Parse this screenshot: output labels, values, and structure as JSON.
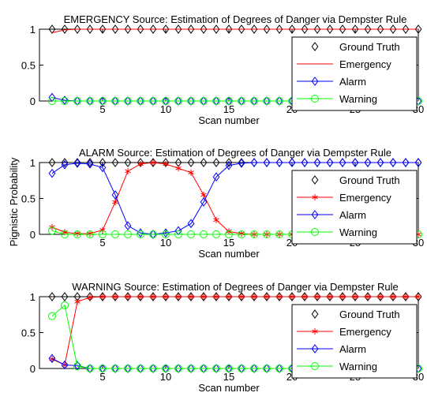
{
  "ylabel_shared": "Pignistic Probability",
  "colors": {
    "ground_truth": "#000000",
    "emergency": "#ff0000",
    "alarm": "#0000ff",
    "warning": "#00ff00",
    "axes": "#000000",
    "background": "#ffffff"
  },
  "chart_data": [
    {
      "type": "line",
      "title": "EMERGENCY Source: Estimation of Degrees of Danger via Dempster Rule",
      "xlabel": "Scan number",
      "ylabel": "Pignistic Probability",
      "xlim": [
        0,
        30
      ],
      "ylim": [
        0,
        1
      ],
      "xticks": [
        5,
        10,
        15,
        20,
        25,
        30
      ],
      "xtick_labels": [
        "5",
        "10",
        "15",
        "20",
        "25",
        "30"
      ],
      "yticks": [
        0,
        0.5,
        1
      ],
      "ytick_labels": [
        "0",
        "0.5",
        "1"
      ],
      "grid": false,
      "legend_position": "bottom-right",
      "x": [
        1,
        2,
        3,
        4,
        5,
        6,
        7,
        8,
        9,
        10,
        11,
        12,
        13,
        14,
        15,
        16,
        17,
        18,
        19,
        20,
        21,
        22,
        23,
        24,
        25,
        26,
        27,
        28,
        29,
        30
      ],
      "series": [
        {
          "name": "Ground Truth",
          "marker": "diamond",
          "line": false,
          "values": [
            1,
            1,
            1,
            1,
            1,
            1,
            1,
            1,
            1,
            1,
            1,
            1,
            1,
            1,
            1,
            1,
            1,
            1,
            1,
            1,
            1,
            1,
            1,
            1,
            1,
            1,
            1,
            1,
            1,
            1
          ]
        },
        {
          "name": "Emergency",
          "marker": "none",
          "line": true,
          "values": [
            0.95,
            0.99,
            1,
            1,
            1,
            1,
            1,
            1,
            1,
            1,
            1,
            1,
            1,
            1,
            1,
            1,
            1,
            1,
            1,
            1,
            1,
            1,
            1,
            1,
            1,
            1,
            1,
            1,
            1,
            1
          ]
        },
        {
          "name": "Alarm",
          "marker": "diamond",
          "line": true,
          "values": [
            0.05,
            0.01,
            0,
            0,
            0,
            0,
            0,
            0,
            0,
            0,
            0,
            0,
            0,
            0,
            0,
            0,
            0,
            0,
            0,
            0,
            0,
            0,
            0,
            0,
            0,
            0,
            0,
            0,
            0,
            0
          ]
        },
        {
          "name": "Warning",
          "marker": "circle",
          "line": true,
          "values": [
            0,
            0,
            0,
            0,
            0,
            0,
            0,
            0,
            0,
            0,
            0,
            0,
            0,
            0,
            0,
            0,
            0,
            0,
            0,
            0,
            0,
            0,
            0,
            0,
            0,
            0,
            0,
            0,
            0,
            0
          ]
        }
      ]
    },
    {
      "type": "line",
      "title": "ALARM Source: Estimation of Degrees of Danger via Dempster Rule",
      "xlabel": "Scan number",
      "ylabel": "Pignistic Probability",
      "xlim": [
        0,
        30
      ],
      "ylim": [
        0,
        1
      ],
      "xticks": [
        5,
        10,
        15,
        20,
        25,
        30
      ],
      "xtick_labels": [
        "5",
        "10",
        "15",
        "20",
        "25",
        "30"
      ],
      "yticks": [
        0,
        0.5,
        1
      ],
      "ytick_labels": [
        "0",
        "0.5",
        "1"
      ],
      "grid": false,
      "legend_position": "bottom-right",
      "x": [
        1,
        2,
        3,
        4,
        5,
        6,
        7,
        8,
        9,
        10,
        11,
        12,
        13,
        14,
        15,
        16,
        17,
        18,
        19,
        20,
        21,
        22,
        23,
        24,
        25,
        26,
        27,
        28,
        29,
        30
      ],
      "series": [
        {
          "name": "Ground Truth",
          "marker": "diamond",
          "line": false,
          "values": [
            1,
            1,
            1,
            1,
            1,
            1,
            1,
            1,
            1,
            1,
            1,
            1,
            1,
            1,
            1,
            1,
            1,
            1,
            1,
            1,
            1,
            1,
            1,
            1,
            1,
            1,
            1,
            1,
            1,
            1
          ]
        },
        {
          "name": "Emergency",
          "marker": "asterisk",
          "line": true,
          "values": [
            0.1,
            0.03,
            0.01,
            0.01,
            0.06,
            0.45,
            0.88,
            0.98,
            1,
            0.98,
            0.92,
            0.86,
            0.55,
            0.2,
            0.04,
            0.01,
            0,
            0,
            0,
            0,
            0,
            0,
            0,
            0,
            0,
            0,
            0,
            0,
            0,
            0
          ]
        },
        {
          "name": "Alarm",
          "marker": "diamond",
          "line": true,
          "values": [
            0.85,
            0.97,
            0.99,
            0.98,
            0.93,
            0.55,
            0.12,
            0.02,
            0,
            0.02,
            0.05,
            0.15,
            0.45,
            0.8,
            0.96,
            0.99,
            1,
            1,
            1,
            1,
            1,
            1,
            1,
            1,
            1,
            1,
            1,
            1,
            1,
            1
          ]
        },
        {
          "name": "Warning",
          "marker": "circle",
          "line": true,
          "values": [
            0.05,
            0,
            0,
            0,
            0,
            0,
            0,
            0,
            0,
            0,
            0,
            0,
            0,
            0,
            0,
            0,
            0,
            0,
            0,
            0,
            0,
            0,
            0,
            0,
            0,
            0,
            0,
            0,
            0,
            0
          ]
        }
      ]
    },
    {
      "type": "line",
      "title": "WARNING Source: Estimation of Degrees of Danger via Dempster Rule",
      "xlabel": "Scan number",
      "ylabel": "Pignistic Probability",
      "xlim": [
        0,
        30
      ],
      "ylim": [
        0,
        1
      ],
      "xticks": [
        5,
        10,
        15,
        20,
        25,
        30
      ],
      "xtick_labels": [
        "5",
        "10",
        "15",
        "20",
        "25",
        "30"
      ],
      "yticks": [
        0,
        0.5,
        1
      ],
      "ytick_labels": [
        "0",
        "0.5",
        "1"
      ],
      "grid": false,
      "legend_position": "bottom-right",
      "x": [
        1,
        2,
        3,
        4,
        5,
        6,
        7,
        8,
        9,
        10,
        11,
        12,
        13,
        14,
        15,
        16,
        17,
        18,
        19,
        20,
        21,
        22,
        23,
        24,
        25,
        26,
        27,
        28,
        29,
        30
      ],
      "series": [
        {
          "name": "Ground Truth",
          "marker": "diamond",
          "line": false,
          "values": [
            1,
            1,
            1,
            1,
            1,
            1,
            1,
            1,
            1,
            1,
            1,
            1,
            1,
            1,
            1,
            1,
            1,
            1,
            1,
            1,
            1,
            1,
            1,
            1,
            1,
            1,
            1,
            1,
            1,
            1
          ]
        },
        {
          "name": "Emergency",
          "marker": "asterisk",
          "line": true,
          "values": [
            0.13,
            0.05,
            0.93,
            0.99,
            1,
            1,
            1,
            1,
            1,
            1,
            1,
            1,
            1,
            1,
            1,
            1,
            1,
            1,
            1,
            1,
            1,
            1,
            1,
            1,
            1,
            1,
            1,
            1,
            1,
            1
          ]
        },
        {
          "name": "Alarm",
          "marker": "diamond",
          "line": true,
          "values": [
            0.14,
            0.05,
            0.04,
            0,
            0,
            0,
            0,
            0,
            0,
            0,
            0,
            0,
            0,
            0,
            0,
            0,
            0,
            0,
            0,
            0,
            0,
            0,
            0,
            0,
            0,
            0,
            0,
            0,
            0,
            0
          ]
        },
        {
          "name": "Warning",
          "marker": "circle",
          "line": true,
          "values": [
            0.73,
            0.88,
            0.03,
            0,
            0,
            0,
            0,
            0,
            0,
            0,
            0,
            0,
            0,
            0,
            0,
            0,
            0,
            0,
            0,
            0,
            0,
            0,
            0,
            0,
            0,
            0,
            0,
            0,
            0,
            0
          ]
        }
      ]
    }
  ]
}
